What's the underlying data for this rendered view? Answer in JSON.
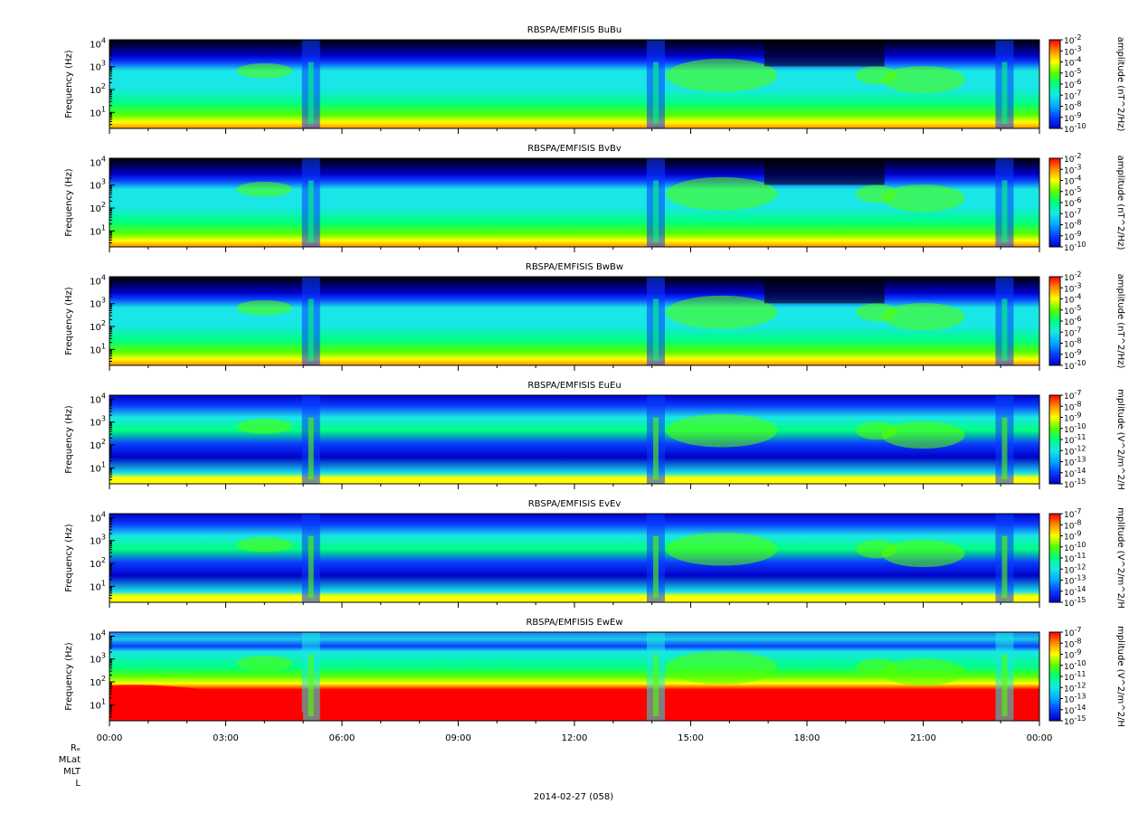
{
  "figure": {
    "date_label": "2014-02-27 (058)",
    "ephem_labels": [
      "Rₑ",
      "MLat",
      "MLT",
      "L"
    ]
  },
  "colors": {
    "scale": [
      "#000000",
      "#0000c8",
      "#0a3cff",
      "#00aaff",
      "#19e6e6",
      "#00ff7f",
      "#55ff00",
      "#ffff00",
      "#ff8c00",
      "#ff0000"
    ]
  },
  "chart_data": [
    {
      "type": "heatmap",
      "title": "RBSPA/EMFISIS  BuBu",
      "ylabel": "Frequency (Hz)",
      "yscale": "log",
      "ylim": [
        2,
        15000
      ],
      "xlim": [
        "00:00",
        "24:00"
      ],
      "x_ticks": [
        "00:00",
        "03:00",
        "06:00",
        "09:00",
        "12:00",
        "15:00",
        "18:00",
        "21:00",
        "00:00"
      ],
      "y_ticks": [
        "10^1",
        "10^2",
        "10^3",
        "10^4"
      ],
      "colorbar": {
        "label": "amplitude (nT^2/Hz)",
        "scale": "log",
        "ticks": [
          "10^-2",
          "10^-3",
          "10^-4",
          "10^-5",
          "10^-6",
          "10^-7",
          "10^-8",
          "10^-9",
          "10^-10"
        ]
      }
    },
    {
      "type": "heatmap",
      "title": "RBSPA/EMFISIS  BvBv",
      "ylabel": "Frequency (Hz)",
      "yscale": "log",
      "ylim": [
        2,
        15000
      ],
      "xlim": [
        "00:00",
        "24:00"
      ],
      "x_ticks": [
        "00:00",
        "03:00",
        "06:00",
        "09:00",
        "12:00",
        "15:00",
        "18:00",
        "21:00",
        "00:00"
      ],
      "y_ticks": [
        "10^1",
        "10^2",
        "10^3",
        "10^4"
      ],
      "colorbar": {
        "label": "amplitude (nT^2/Hz)",
        "scale": "log",
        "ticks": [
          "10^-2",
          "10^-3",
          "10^-4",
          "10^-5",
          "10^-6",
          "10^-7",
          "10^-8",
          "10^-9",
          "10^-10"
        ]
      }
    },
    {
      "type": "heatmap",
      "title": "RBSPA/EMFISIS  BwBw",
      "ylabel": "Frequency (Hz)",
      "yscale": "log",
      "ylim": [
        2,
        15000
      ],
      "xlim": [
        "00:00",
        "24:00"
      ],
      "x_ticks": [
        "00:00",
        "03:00",
        "06:00",
        "09:00",
        "12:00",
        "15:00",
        "18:00",
        "21:00",
        "00:00"
      ],
      "y_ticks": [
        "10^1",
        "10^2",
        "10^3",
        "10^4"
      ],
      "colorbar": {
        "label": "amplitude (nT^2/Hz)",
        "scale": "log",
        "ticks": [
          "10^-2",
          "10^-3",
          "10^-4",
          "10^-5",
          "10^-6",
          "10^-7",
          "10^-8",
          "10^-9",
          "10^-10"
        ]
      }
    },
    {
      "type": "heatmap",
      "title": "RBSPA/EMFISIS  EuEu",
      "ylabel": "Frequency (Hz)",
      "yscale": "log",
      "ylim": [
        2,
        15000
      ],
      "xlim": [
        "00:00",
        "24:00"
      ],
      "x_ticks": [
        "00:00",
        "03:00",
        "06:00",
        "09:00",
        "12:00",
        "15:00",
        "18:00",
        "21:00",
        "00:00"
      ],
      "y_ticks": [
        "10^1",
        "10^2",
        "10^3",
        "10^4"
      ],
      "colorbar": {
        "label": "mplitude (V^2/m^2/H",
        "scale": "log",
        "ticks": [
          "10^-7",
          "10^-8",
          "10^-9",
          "10^-10",
          "10^-11",
          "10^-12",
          "10^-13",
          "10^-14",
          "10^-15"
        ]
      }
    },
    {
      "type": "heatmap",
      "title": "RBSPA/EMFISIS  EvEv",
      "ylabel": "Frequency (Hz)",
      "yscale": "log",
      "ylim": [
        2,
        15000
      ],
      "xlim": [
        "00:00",
        "24:00"
      ],
      "x_ticks": [
        "00:00",
        "03:00",
        "06:00",
        "09:00",
        "12:00",
        "15:00",
        "18:00",
        "21:00",
        "00:00"
      ],
      "y_ticks": [
        "10^1",
        "10^2",
        "10^3",
        "10^4"
      ],
      "colorbar": {
        "label": "mplitude (V^2/m^2/H",
        "scale": "log",
        "ticks": [
          "10^-7",
          "10^-8",
          "10^-9",
          "10^-10",
          "10^-11",
          "10^-12",
          "10^-13",
          "10^-14",
          "10^-15"
        ]
      }
    },
    {
      "type": "heatmap",
      "title": "RBSPA/EMFISIS  EwEw",
      "ylabel": "Frequency (Hz)",
      "yscale": "log",
      "ylim": [
        2,
        15000
      ],
      "xlim": [
        "00:00",
        "24:00"
      ],
      "x_ticks": [
        "00:00",
        "03:00",
        "06:00",
        "09:00",
        "12:00",
        "15:00",
        "18:00",
        "21:00",
        "00:00"
      ],
      "y_ticks": [
        "10^1",
        "10^2",
        "10^3",
        "10^4"
      ],
      "colorbar": {
        "label": "mplitude (V^2/m^2/H",
        "scale": "log",
        "ticks": [
          "10^-7",
          "10^-8",
          "10^-9",
          "10^-10",
          "10^-11",
          "10^-12",
          "10^-13",
          "10^-14",
          "10^-15"
        ]
      }
    }
  ]
}
